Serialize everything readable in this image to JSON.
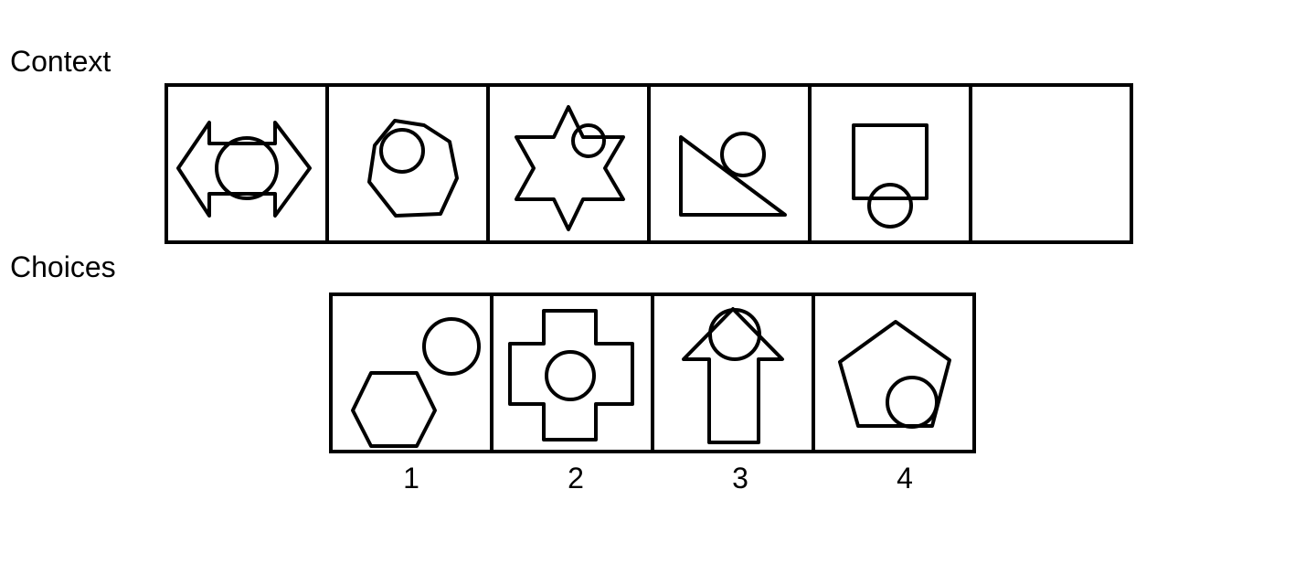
{
  "context": {
    "label": "Context",
    "panels": [
      "double-arrow-with-circle",
      "heptagon-with-circle",
      "star-with-circle",
      "triangle-with-circle",
      "square-with-circle",
      "empty-answer-slot"
    ]
  },
  "choices": {
    "label": "Choices",
    "panels": [
      "hexagon-and-circle",
      "cross-with-circle",
      "arrow-with-circle",
      "pentagon-with-circle"
    ],
    "numbers": [
      "1",
      "2",
      "3",
      "4"
    ]
  },
  "colors": {
    "stroke": "#000000",
    "background": "#ffffff"
  }
}
